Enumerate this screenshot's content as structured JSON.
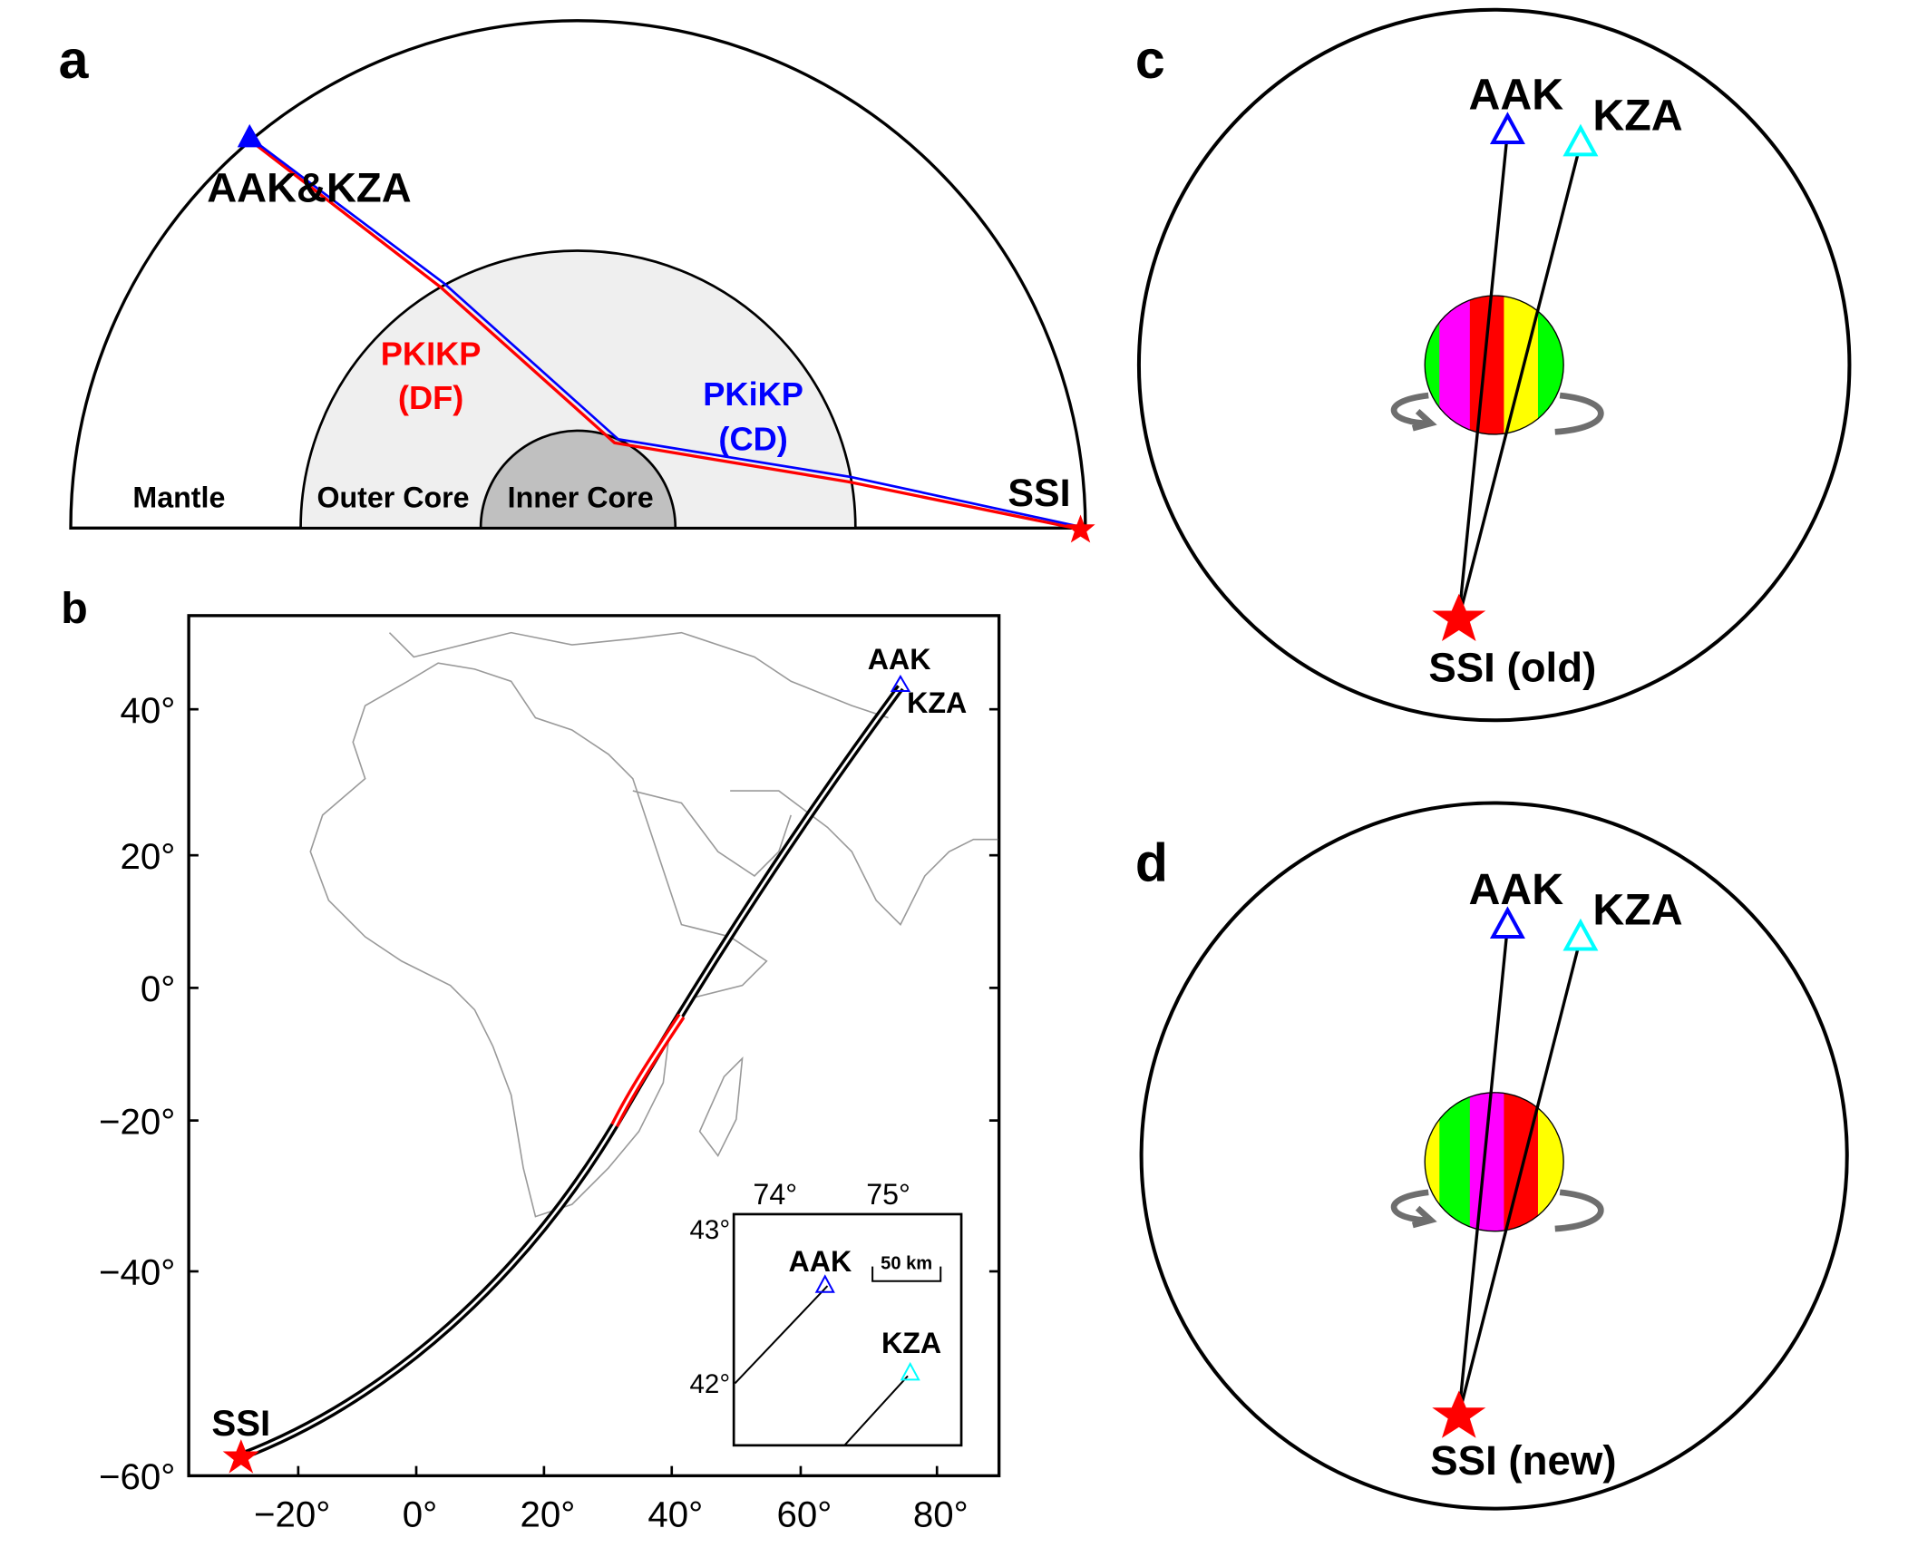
{
  "panel_a": {
    "letter": "a",
    "station_label": "AAK&KZA",
    "source_label": "SSI",
    "layers": {
      "mantle": "Mantle",
      "outer_core": "Outer Core",
      "inner_core": "Inner Core"
    },
    "phase_df": {
      "name": "PKIKP",
      "alias": "(DF)"
    },
    "phase_cd": {
      "name": "PKiKP",
      "alias": "(CD)"
    }
  },
  "panel_b": {
    "letter": "b",
    "station_aak": "AAK",
    "station_kza": "KZA",
    "source": "SSI",
    "x_ticks": [
      "−20°",
      "0°",
      "20°",
      "40°",
      "60°",
      "80°"
    ],
    "y_ticks": [
      "40°",
      "20°",
      "0°",
      "−20°",
      "−40°",
      "−60°"
    ],
    "inset": {
      "x_ticks": [
        "74°",
        "75°"
      ],
      "y_ticks": [
        "43°",
        "42°"
      ],
      "station_aak": "AAK",
      "station_kza": "KZA",
      "scale_bar": "50 km"
    }
  },
  "panel_c": {
    "letter": "c",
    "station_aak": "AAK",
    "station_kza": "KZA",
    "source": "SSI (old)",
    "stripes": [
      "#00ff00",
      "#ff00ff",
      "#ff0000",
      "#ffff00",
      "#00ff00"
    ]
  },
  "panel_d": {
    "letter": "d",
    "station_aak": "AAK",
    "station_kza": "KZA",
    "source": "SSI (new)",
    "stripes": [
      "#ffff00",
      "#00ff00",
      "#ff00ff",
      "#ff0000",
      "#ffff00"
    ]
  },
  "colors": {
    "df": "#ff0000",
    "cd": "#0000ff",
    "aak": "#0000ff",
    "kza": "#00ffff",
    "source": "#ff0000"
  }
}
